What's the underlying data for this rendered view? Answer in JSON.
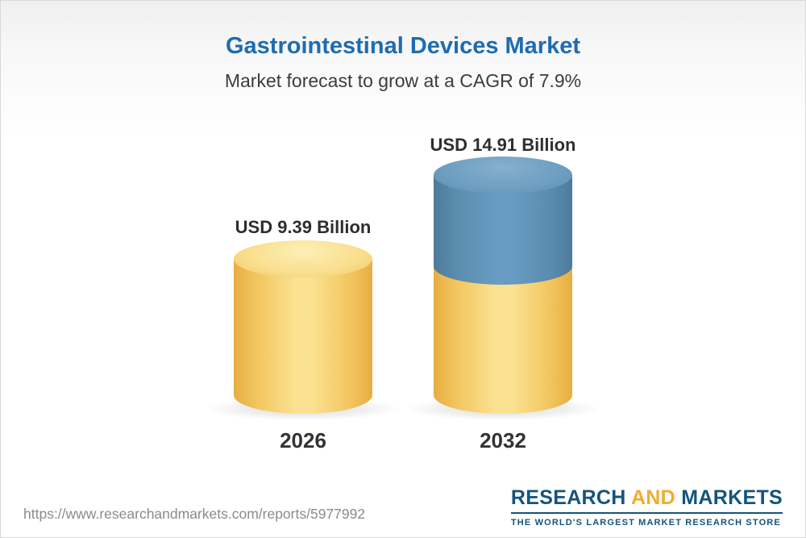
{
  "accent_colors": {
    "title_blue": "#1e6cb0",
    "bar_yellow": "#f7d87e",
    "bar_blue": "#689cc2",
    "logo_blue": "#14547c",
    "logo_gold": "#f0ad2d"
  },
  "header": {
    "title": "Gastrointestinal Devices Market",
    "subtitle": "Market forecast to grow at a CAGR of 7.9%"
  },
  "chart_data": {
    "type": "bar",
    "title": "Gastrointestinal Devices Market",
    "subtitle": "Market forecast to grow at a CAGR of 7.9%",
    "unit": "USD Billion",
    "cagr_percent": 7.9,
    "categories": [
      "2026",
      "2032"
    ],
    "values": [
      9.39,
      14.91
    ],
    "bars": [
      {
        "year": "2026",
        "value": 9.39,
        "label": "USD 9.39 Billion",
        "color": "yellow"
      },
      {
        "year": "2032",
        "value": 14.91,
        "label": "USD 14.91 Billion",
        "color": "yellow-with-blue-growth-segment"
      }
    ],
    "legend": "none",
    "grid": "off"
  },
  "footer": {
    "url": "https://www.researchandmarkets.com/reports/5977992",
    "logo": {
      "word_research": "RESEARCH",
      "word_and": "AND",
      "word_markets": "MARKETS",
      "tagline": "THE WORLD'S LARGEST MARKET RESEARCH STORE"
    }
  }
}
